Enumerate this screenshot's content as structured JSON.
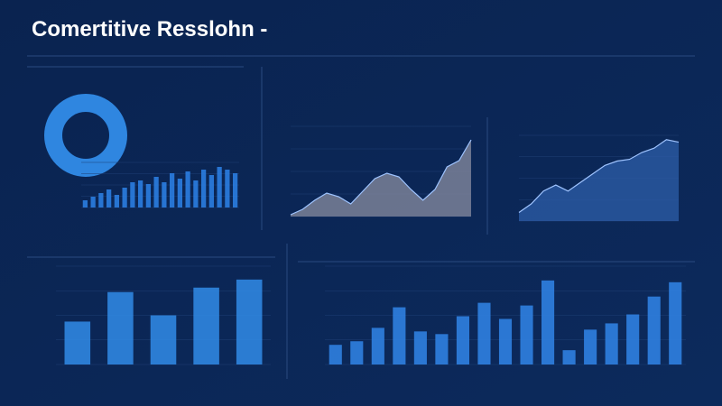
{
  "title": "Comertitive Resslohn -",
  "chart_data": [
    {
      "type": "pie",
      "values": [
        100
      ],
      "color": "#2f86e0"
    },
    {
      "type": "bar",
      "values": [
        8,
        12,
        16,
        20,
        14,
        22,
        28,
        30,
        26,
        34,
        28,
        38,
        32,
        40,
        30,
        42,
        36,
        45,
        42,
        38
      ],
      "color": "#2a7de0",
      "ylim": [
        0,
        50
      ]
    },
    {
      "type": "area",
      "values": [
        2,
        8,
        18,
        26,
        22,
        14,
        28,
        42,
        48,
        44,
        30,
        18,
        30,
        55,
        62,
        85
      ],
      "color": "#8a8ea0",
      "ylim": [
        0,
        100
      ]
    },
    {
      "type": "area",
      "values": [
        10,
        20,
        35,
        42,
        35,
        45,
        55,
        65,
        70,
        72,
        80,
        85,
        95,
        92
      ],
      "color": "#2e5ea8",
      "ylim": [
        0,
        100
      ]
    },
    {
      "type": "bar",
      "values": [
        48,
        81,
        55,
        86,
        95
      ],
      "color": "#2f86e0",
      "ylim": [
        0,
        110
      ]
    },
    {
      "type": "bar",
      "values": [
        22,
        26,
        41,
        64,
        37,
        34,
        54,
        69,
        51,
        66,
        94,
        16,
        39,
        46,
        56,
        76,
        92
      ],
      "color": "#2f7fe0",
      "ylim": [
        0,
        110
      ]
    }
  ]
}
